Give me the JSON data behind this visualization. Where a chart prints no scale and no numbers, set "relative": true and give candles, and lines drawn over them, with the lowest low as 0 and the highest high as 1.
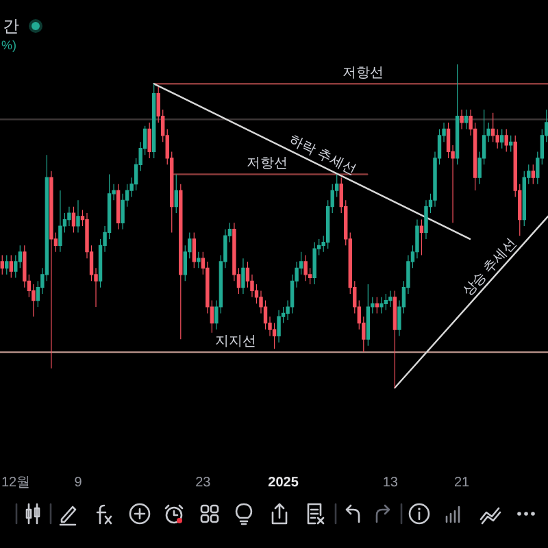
{
  "chart_data": {
    "type": "candlestick",
    "title": "간",
    "subtitle": "%)",
    "relative": true,
    "xlim": [
      "2024-11-30T06:00",
      "2025-01-30T16:00"
    ],
    "xticks": [
      {
        "value": "2024-12-01",
        "label": "12월"
      },
      {
        "value": "2024-12-09",
        "label": "9"
      },
      {
        "value": "2024-12-23",
        "label": "23"
      },
      {
        "value": "2025-01-01",
        "label": "2025"
      },
      {
        "value": "2025-01-13",
        "label": "13"
      },
      {
        "value": "2025-01-21",
        "label": "21"
      }
    ],
    "x": [
      "2024-11-30T12:00",
      "2024-12-01T00:00",
      "2024-12-01T12:00",
      "2024-12-02T00:00",
      "2024-12-02T12:00",
      "2024-12-03T00:00",
      "2024-12-03T12:00",
      "2024-12-04T00:00",
      "2024-12-04T12:00",
      "2024-12-05T00:00",
      "2024-12-05T12:00",
      "2024-12-06T00:00",
      "2024-12-06T12:00",
      "2024-12-07T00:00",
      "2024-12-07T12:00",
      "2024-12-08T00:00",
      "2024-12-08T12:00",
      "2024-12-09T00:00",
      "2024-12-09T12:00",
      "2024-12-10T00:00",
      "2024-12-10T12:00",
      "2024-12-11T00:00",
      "2024-12-11T12:00",
      "2024-12-12T00:00",
      "2024-12-12T12:00",
      "2024-12-13T00:00",
      "2024-12-13T12:00",
      "2024-12-14T00:00",
      "2024-12-14T12:00",
      "2024-12-15T00:00",
      "2024-12-15T12:00",
      "2024-12-16T00:00",
      "2024-12-16T12:00",
      "2024-12-17T00:00",
      "2024-12-17T12:00",
      "2024-12-18T00:00",
      "2024-12-18T12:00",
      "2024-12-19T00:00",
      "2024-12-19T12:00",
      "2024-12-20T00:00",
      "2024-12-20T12:00",
      "2024-12-21T00:00",
      "2024-12-21T12:00",
      "2024-12-22T00:00",
      "2024-12-22T12:00",
      "2024-12-23T00:00",
      "2024-12-23T12:00",
      "2024-12-24T00:00",
      "2024-12-24T12:00",
      "2024-12-25T00:00",
      "2024-12-25T12:00",
      "2024-12-26T00:00",
      "2024-12-26T12:00",
      "2024-12-27T00:00",
      "2024-12-27T12:00",
      "2024-12-28T00:00",
      "2024-12-28T12:00",
      "2024-12-29T00:00",
      "2024-12-29T12:00",
      "2024-12-30T00:00",
      "2024-12-30T12:00",
      "2024-12-31T00:00",
      "2024-12-31T12:00",
      "2025-01-01T00:00",
      "2025-01-01T12:00",
      "2025-01-02T00:00",
      "2025-01-02T12:00",
      "2025-01-03T00:00",
      "2025-01-03T12:00",
      "2025-01-04T00:00",
      "2025-01-04T12:00",
      "2025-01-05T00:00",
      "2025-01-05T12:00",
      "2025-01-06T00:00",
      "2025-01-06T12:00",
      "2025-01-07T00:00",
      "2025-01-07T12:00",
      "2025-01-08T00:00",
      "2025-01-08T12:00",
      "2025-01-09T00:00",
      "2025-01-09T12:00",
      "2025-01-10T00:00",
      "2025-01-10T12:00",
      "2025-01-11T00:00",
      "2025-01-11T12:00",
      "2025-01-12T00:00",
      "2025-01-12T12:00",
      "2025-01-13T00:00",
      "2025-01-13T12:00",
      "2025-01-14T00:00",
      "2025-01-14T12:00",
      "2025-01-15T00:00",
      "2025-01-15T12:00",
      "2025-01-16T00:00",
      "2025-01-16T12:00",
      "2025-01-17T00:00",
      "2025-01-17T12:00",
      "2025-01-18T00:00",
      "2025-01-18T12:00",
      "2025-01-19T00:00",
      "2025-01-19T12:00",
      "2025-01-20T00:00",
      "2025-01-20T12:00",
      "2025-01-21T00:00",
      "2025-01-21T12:00",
      "2025-01-22T00:00",
      "2025-01-22T12:00",
      "2025-01-23T00:00",
      "2025-01-23T12:00",
      "2025-01-24T00:00",
      "2025-01-24T12:00",
      "2025-01-25T00:00",
      "2025-01-25T12:00",
      "2025-01-26T00:00",
      "2025-01-26T12:00",
      "2025-01-27T00:00",
      "2025-01-27T12:00",
      "2025-01-28T00:00",
      "2025-01-28T12:00",
      "2025-01-29T00:00",
      "2025-01-29T12:00",
      "2025-01-30T00:00",
      "2025-01-30T12:00"
    ],
    "ohlc": [
      [
        0.39,
        0.41,
        0.35,
        0.37
      ],
      [
        0.37,
        0.41,
        0.35,
        0.39
      ],
      [
        0.39,
        0.41,
        0.34,
        0.36
      ],
      [
        0.36,
        0.41,
        0.34,
        0.39
      ],
      [
        0.39,
        0.44,
        0.37,
        0.42
      ],
      [
        0.42,
        0.44,
        0.31,
        0.33
      ],
      [
        0.33,
        0.35,
        0.28,
        0.3
      ],
      [
        0.3,
        0.32,
        0.22,
        0.27
      ],
      [
        0.27,
        0.33,
        0.25,
        0.31
      ],
      [
        0.31,
        0.37,
        0.29,
        0.35
      ],
      [
        0.35,
        0.72,
        0.33,
        0.65
      ],
      [
        0.65,
        0.67,
        0.06,
        0.46
      ],
      [
        0.46,
        0.48,
        0.42,
        0.44
      ],
      [
        0.44,
        0.61,
        0.42,
        0.5
      ],
      [
        0.5,
        0.54,
        0.48,
        0.52
      ],
      [
        0.52,
        0.56,
        0.5,
        0.54
      ],
      [
        0.54,
        0.56,
        0.48,
        0.5
      ],
      [
        0.5,
        0.58,
        0.48,
        0.53
      ],
      [
        0.53,
        0.55,
        0.5,
        0.52
      ],
      [
        0.52,
        0.54,
        0.4,
        0.42
      ],
      [
        0.42,
        0.44,
        0.33,
        0.35
      ],
      [
        0.35,
        0.37,
        0.25,
        0.33
      ],
      [
        0.33,
        0.46,
        0.31,
        0.44
      ],
      [
        0.44,
        0.5,
        0.42,
        0.48
      ],
      [
        0.48,
        0.66,
        0.46,
        0.6
      ],
      [
        0.6,
        0.63,
        0.58,
        0.61
      ],
      [
        0.61,
        0.63,
        0.49,
        0.51
      ],
      [
        0.51,
        0.6,
        0.49,
        0.58
      ],
      [
        0.58,
        0.63,
        0.56,
        0.61
      ],
      [
        0.61,
        0.65,
        0.59,
        0.63
      ],
      [
        0.63,
        0.71,
        0.61,
        0.69
      ],
      [
        0.69,
        0.76,
        0.67,
        0.74
      ],
      [
        0.74,
        0.81,
        0.72,
        0.8
      ],
      [
        0.8,
        0.82,
        0.71,
        0.73
      ],
      [
        0.73,
        0.94,
        0.71,
        0.91
      ],
      [
        0.91,
        0.93,
        0.82,
        0.84
      ],
      [
        0.84,
        0.86,
        0.76,
        0.78
      ],
      [
        0.78,
        0.8,
        0.69,
        0.71
      ],
      [
        0.71,
        0.73,
        0.48,
        0.56
      ],
      [
        0.56,
        0.66,
        0.54,
        0.61
      ],
      [
        0.61,
        0.63,
        0.15,
        0.35
      ],
      [
        0.35,
        0.44,
        0.33,
        0.42
      ],
      [
        0.42,
        0.48,
        0.4,
        0.46
      ],
      [
        0.46,
        0.48,
        0.37,
        0.39
      ],
      [
        0.39,
        0.42,
        0.37,
        0.4
      ],
      [
        0.4,
        0.42,
        0.35,
        0.37
      ],
      [
        0.37,
        0.39,
        0.23,
        0.25
      ],
      [
        0.25,
        0.27,
        0.17,
        0.2
      ],
      [
        0.2,
        0.27,
        0.18,
        0.25
      ],
      [
        0.25,
        0.41,
        0.23,
        0.39
      ],
      [
        0.39,
        0.49,
        0.37,
        0.47
      ],
      [
        0.47,
        0.51,
        0.45,
        0.49
      ],
      [
        0.49,
        0.51,
        0.33,
        0.35
      ],
      [
        0.35,
        0.37,
        0.29,
        0.31
      ],
      [
        0.31,
        0.4,
        0.29,
        0.37
      ],
      [
        0.37,
        0.39,
        0.31,
        0.33
      ],
      [
        0.33,
        0.35,
        0.28,
        0.3
      ],
      [
        0.3,
        0.32,
        0.26,
        0.28
      ],
      [
        0.28,
        0.3,
        0.23,
        0.25
      ],
      [
        0.25,
        0.27,
        0.18,
        0.2
      ],
      [
        0.2,
        0.22,
        0.16,
        0.18
      ],
      [
        0.18,
        0.2,
        0.12,
        0.16
      ],
      [
        0.16,
        0.24,
        0.14,
        0.22
      ],
      [
        0.22,
        0.25,
        0.2,
        0.23
      ],
      [
        0.23,
        0.27,
        0.21,
        0.25
      ],
      [
        0.25,
        0.35,
        0.23,
        0.33
      ],
      [
        0.33,
        0.39,
        0.31,
        0.37
      ],
      [
        0.37,
        0.42,
        0.35,
        0.39
      ],
      [
        0.39,
        0.41,
        0.33,
        0.35
      ],
      [
        0.35,
        0.37,
        0.32,
        0.34
      ],
      [
        0.34,
        0.45,
        0.32,
        0.43
      ],
      [
        0.43,
        0.46,
        0.41,
        0.44
      ],
      [
        0.44,
        0.47,
        0.42,
        0.45
      ],
      [
        0.45,
        0.58,
        0.43,
        0.56
      ],
      [
        0.56,
        0.63,
        0.54,
        0.61
      ],
      [
        0.61,
        0.66,
        0.59,
        0.63
      ],
      [
        0.63,
        0.65,
        0.54,
        0.56
      ],
      [
        0.56,
        0.58,
        0.44,
        0.46
      ],
      [
        0.46,
        0.48,
        0.29,
        0.31
      ],
      [
        0.31,
        0.33,
        0.23,
        0.25
      ],
      [
        0.25,
        0.27,
        0.18,
        0.2
      ],
      [
        0.2,
        0.22,
        0.11,
        0.15
      ],
      [
        0.15,
        0.32,
        0.13,
        0.25
      ],
      [
        0.25,
        0.28,
        0.23,
        0.26
      ],
      [
        0.26,
        0.28,
        0.23,
        0.25
      ],
      [
        0.25,
        0.28,
        0.23,
        0.26
      ],
      [
        0.26,
        0.29,
        0.24,
        0.27
      ],
      [
        0.27,
        0.3,
        0.25,
        0.28
      ],
      [
        0.28,
        0.3,
        0,
        0.18
      ],
      [
        0.18,
        0.27,
        0.16,
        0.25
      ],
      [
        0.25,
        0.33,
        0.23,
        0.31
      ],
      [
        0.31,
        0.41,
        0.29,
        0.39
      ],
      [
        0.39,
        0.44,
        0.37,
        0.42
      ],
      [
        0.42,
        0.52,
        0.4,
        0.5
      ],
      [
        0.5,
        0.52,
        0.41,
        0.48
      ],
      [
        0.48,
        0.58,
        0.46,
        0.56
      ],
      [
        0.56,
        0.6,
        0.54,
        0.58
      ],
      [
        0.58,
        0.73,
        0.56,
        0.71
      ],
      [
        0.71,
        0.8,
        0.69,
        0.78
      ],
      [
        0.78,
        0.82,
        0.76,
        0.8
      ],
      [
        0.8,
        0.82,
        0.71,
        0.73
      ],
      [
        0.73,
        0.75,
        0.51,
        0.71
      ],
      [
        0.71,
        1,
        0.69,
        0.84
      ],
      [
        0.84,
        0.86,
        0.8,
        0.82
      ],
      [
        0.82,
        0.86,
        0.8,
        0.84
      ],
      [
        0.84,
        0.86,
        0.78,
        0.8
      ],
      [
        0.8,
        0.82,
        0.61,
        0.65
      ],
      [
        0.65,
        0.73,
        0.63,
        0.71
      ],
      [
        0.71,
        0.86,
        0.69,
        0.78
      ],
      [
        0.78,
        0.82,
        0.76,
        0.8
      ],
      [
        0.8,
        0.85,
        0.76,
        0.78
      ],
      [
        0.78,
        0.8,
        0.74,
        0.76
      ],
      [
        0.76,
        0.8,
        0.74,
        0.78
      ],
      [
        0.78,
        0.8,
        0.73,
        0.75
      ],
      [
        0.75,
        0.78,
        0.73,
        0.76
      ],
      [
        0.76,
        0.78,
        0.59,
        0.61
      ],
      [
        0.61,
        0.63,
        0.47,
        0.52
      ],
      [
        0.52,
        0.67,
        0.5,
        0.65
      ],
      [
        0.65,
        0.69,
        0.63,
        0.67
      ],
      [
        0.67,
        0.69,
        0.63,
        0.65
      ],
      [
        0.65,
        0.73,
        0.63,
        0.71
      ],
      [
        0.71,
        0.8,
        0.69,
        0.78
      ],
      [
        0.78,
        0.86,
        0.76,
        0.82
      ]
    ],
    "series": [
      {
        "type": "line",
        "x": [
          "2024-12-17T12:00",
          "2025-01-30T16:00"
        ],
        "values": [
          0.94,
          0.94
        ],
        "color": "#8c3b3b"
      },
      {
        "type": "line",
        "x": [
          "2024-12-19T18:00",
          "2025-01-10T10:00"
        ],
        "values": [
          0.66,
          0.66
        ],
        "color": "#8c3b3b"
      },
      {
        "type": "line",
        "x": [
          "2024-12-17T12:00",
          "2025-01-21T22:00"
        ],
        "values": [
          0.94,
          0.46
        ],
        "color": "#d9d9d9"
      },
      {
        "type": "line",
        "x": [
          "2025-01-13T12:00",
          "2025-01-30T16:00"
        ],
        "values": [
          0,
          0.53
        ],
        "color": "#d9d9d9"
      }
    ],
    "ref_lines": [
      {
        "axis": "y",
        "value": 0.11,
        "label": "지지선",
        "color": "#b8938a"
      },
      {
        "axis": "y",
        "value": 0.83,
        "color": "#3d3636"
      }
    ],
    "annotations": [
      {
        "text": "저항선",
        "x": "2025-01-09T22:00",
        "y": 0.94
      },
      {
        "text": "저항선",
        "x": "2024-12-30T05:00",
        "y": 0.66
      },
      {
        "text": "하락 추세선",
        "x": "2025-01-04T21:00",
        "y": 0.69
      },
      {
        "text": "상승 추세선",
        "x": "2025-01-25T00:00",
        "y": 0.35
      }
    ]
  }
}
